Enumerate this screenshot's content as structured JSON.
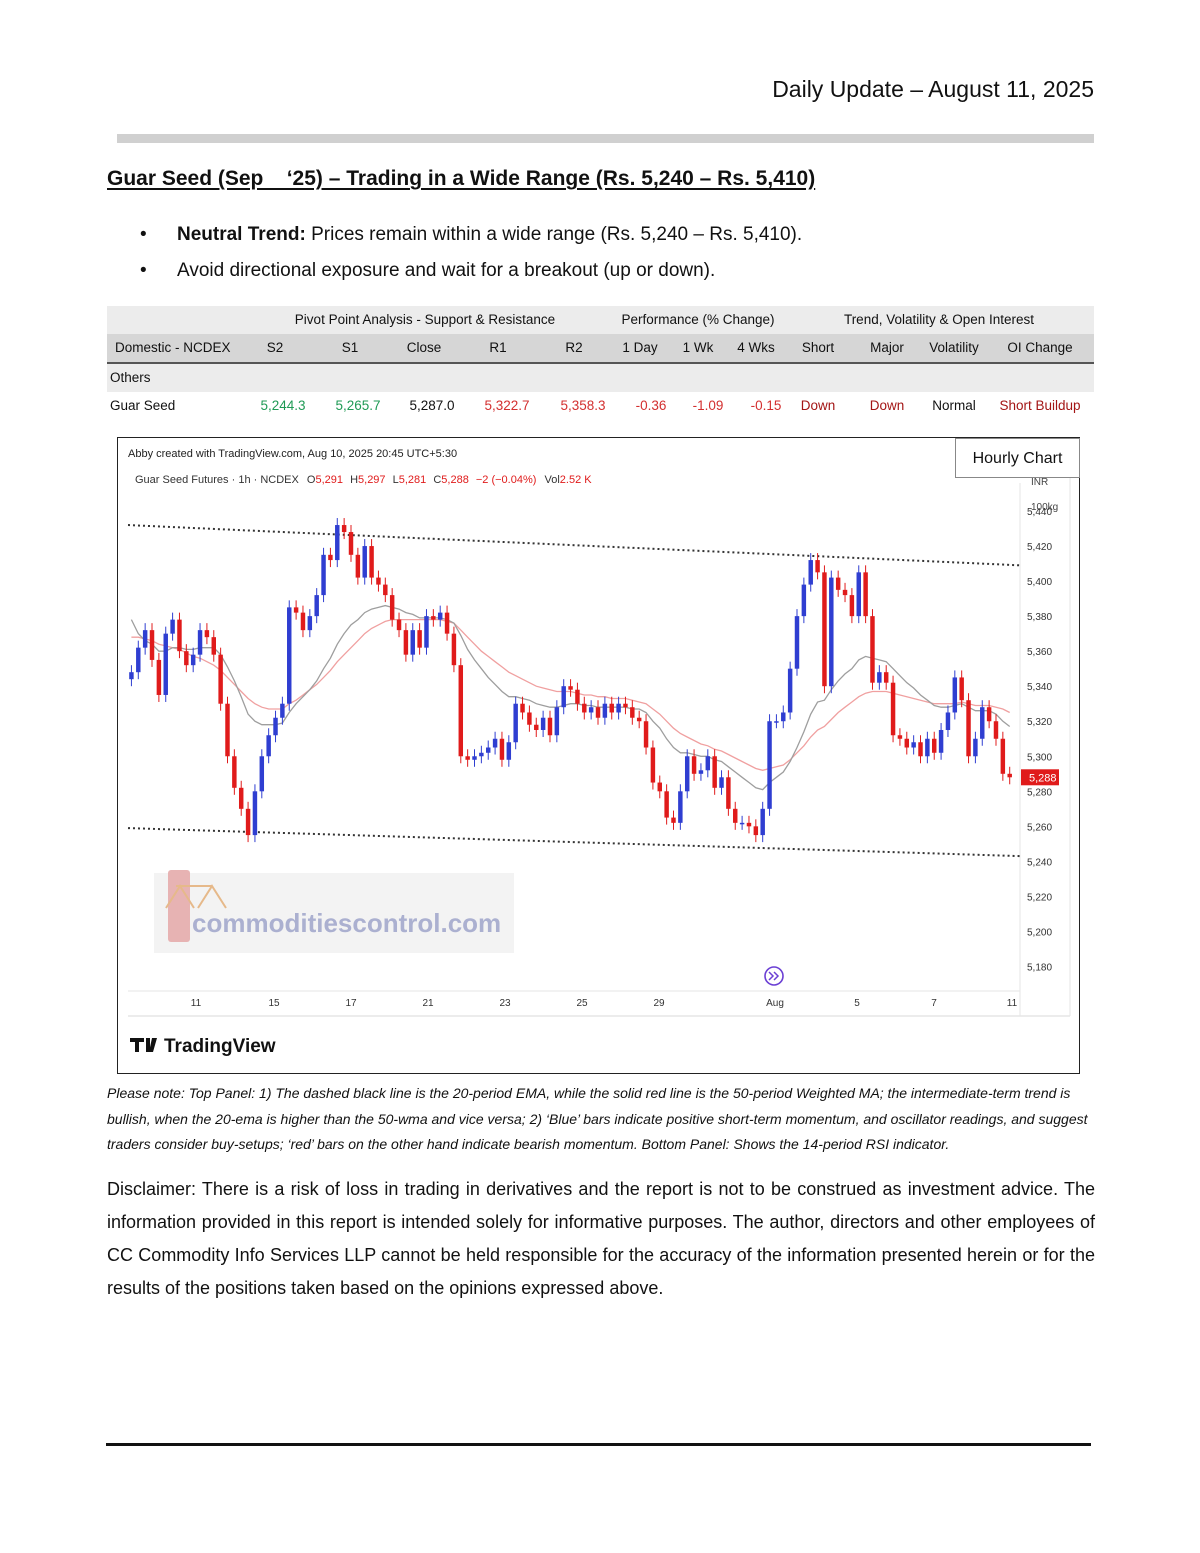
{
  "header": {
    "date_line": "Daily Update – August 11, 2025"
  },
  "title": "Guar Seed (Sep    ‘25) – Trading in a Wide Range (Rs. 5,240 – Rs. 5,410)",
  "bullets": [
    {
      "bold": "Neutral Trend:",
      "text": " Prices remain within a wide range (Rs. 5,240 – Rs. 5,410)."
    },
    {
      "bold": "",
      "text": "Avoid directional exposure and wait for a breakout (up or down)."
    }
  ],
  "table": {
    "groups": [
      "Pivot Point Analysis - Support & Resistance",
      "Performance (% Change)",
      "Trend, Volatility & Open Interest"
    ],
    "columns": [
      "Domestic - NCDEX",
      "S2",
      "S1",
      "Close",
      "R1",
      "R2",
      "1 Day",
      "1 Wk",
      "4 Wks",
      "Short",
      "Major",
      "Volatility",
      "OI Change"
    ],
    "section": "Others",
    "row": [
      "Guar Seed",
      "5,244.3",
      "5,265.7",
      "5,287.0",
      "5,322.7",
      "5,358.3",
      "-0.36",
      "-1.09",
      "-0.15",
      "Down",
      "Down",
      "Normal",
      "Short Buildup"
    ],
    "colors": {
      "support": "#1f9a55",
      "resistance": "#d32f2f",
      "trend": "#a31515"
    }
  },
  "chart": {
    "box_label": "Hourly Chart",
    "created_by": "Abby created with TradingView.com, Aug 10, 2025 20:45 UTC+5:30",
    "legend_prefix": "Guar Seed Futures · 1h · NCDEX",
    "ohlc": {
      "o_label": "O",
      "o": "5,291",
      "h_label": "H",
      "h": "5,297",
      "l_label": "L",
      "l": "5,281",
      "c_label": "C",
      "c": "5,288",
      "chg": "−2 (−0.04%)",
      "vol_label": "Vol",
      "vol": "2.52 K"
    },
    "unit_top": "INR",
    "unit_bottom": "100kg",
    "last_price": "5,288",
    "watermark": "commoditiescontrol.com",
    "logo_text": "TradingView",
    "colors": {
      "up": "#2f3ed1",
      "down": "#e01b1b",
      "ema": "#9e9e9e",
      "wma": "#f0a0a0"
    },
    "chart_data": {
      "type": "candlestick",
      "y_ticks": [
        5440,
        5420,
        5400,
        5380,
        5360,
        5340,
        5320,
        5300,
        5280,
        5260,
        5240,
        5220,
        5200,
        5180
      ],
      "y_tick_labels": [
        "5,440",
        "5,420",
        "5,400",
        "5,380",
        "5,360",
        "5,340",
        "5,320",
        "5,300",
        "5,280",
        "5,260",
        "5,240",
        "5,220",
        "5,200",
        "5,180"
      ],
      "x_tick_labels": [
        "11",
        "15",
        "17",
        "21",
        "23",
        "25",
        "29",
        "Aug",
        "5",
        "7",
        "11"
      ],
      "ylim": [
        5166,
        5456
      ],
      "trendlines": [
        {
          "from": [
            0,
            5432
          ],
          "to": [
            1,
            5409
          ]
        },
        {
          "from": [
            0,
            5259
          ],
          "to": [
            1,
            5243
          ]
        }
      ],
      "close": [
        5348,
        5362,
        5372,
        5355,
        5335,
        5370,
        5378,
        5360,
        5352,
        5358,
        5372,
        5368,
        5358,
        5330,
        5300,
        5282,
        5270,
        5255,
        5280,
        5300,
        5312,
        5322,
        5330,
        5385,
        5382,
        5372,
        5380,
        5392,
        5415,
        5412,
        5432,
        5428,
        5415,
        5402,
        5420,
        5402,
        5398,
        5392,
        5378,
        5372,
        5358,
        5372,
        5362,
        5380,
        5378,
        5382,
        5370,
        5352,
        5300,
        5298,
        5300,
        5302,
        5305,
        5310,
        5298,
        5308,
        5330,
        5325,
        5318,
        5315,
        5322,
        5312,
        5328,
        5340,
        5338,
        5330,
        5325,
        5328,
        5322,
        5330,
        5325,
        5330,
        5328,
        5322,
        5320,
        5305,
        5285,
        5280,
        5265,
        5262,
        5280,
        5300,
        5290,
        5292,
        5300,
        5282,
        5288,
        5270,
        5262,
        5262,
        5260,
        5255,
        5270,
        5320,
        5320,
        5325,
        5350,
        5380,
        5398,
        5412,
        5405,
        5340,
        5402,
        5395,
        5392,
        5380,
        5405,
        5380,
        5342,
        5348,
        5342,
        5312,
        5310,
        5305,
        5308,
        5300,
        5310,
        5302,
        5315,
        5325,
        5345,
        5332,
        5300,
        5310,
        5328,
        5320,
        5310,
        5290,
        5288
      ],
      "ema_20": [
        5378,
        5370,
        5366,
        5364,
        5360,
        5360,
        5362,
        5362,
        5361,
        5361,
        5362,
        5362,
        5362,
        5358,
        5351,
        5343,
        5334,
        5324,
        5320,
        5318,
        5318,
        5318,
        5319,
        5325,
        5330,
        5334,
        5338,
        5343,
        5350,
        5356,
        5364,
        5370,
        5375,
        5378,
        5382,
        5384,
        5385,
        5386,
        5385,
        5384,
        5382,
        5381,
        5379,
        5379,
        5379,
        5379,
        5378,
        5376,
        5369,
        5361,
        5355,
        5350,
        5345,
        5341,
        5337,
        5334,
        5334,
        5333,
        5332,
        5330,
        5329,
        5328,
        5328,
        5329,
        5330,
        5330,
        5329,
        5329,
        5328,
        5328,
        5328,
        5328,
        5328,
        5327,
        5327,
        5325,
        5320,
        5316,
        5310,
        5305,
        5302,
        5302,
        5301,
        5300,
        5300,
        5298,
        5297,
        5294,
        5291,
        5288,
        5285,
        5282,
        5281,
        5285,
        5288,
        5291,
        5297,
        5305,
        5314,
        5324,
        5331,
        5332,
        5338,
        5343,
        5347,
        5350,
        5355,
        5357,
        5356,
        5355,
        5354,
        5350,
        5346,
        5342,
        5339,
        5335,
        5332,
        5329,
        5328,
        5328,
        5329,
        5330,
        5328,
        5326,
        5326,
        5326,
        5324,
        5320,
        5317
      ],
      "wma_50": [
        5368,
        5368,
        5367,
        5366,
        5364,
        5363,
        5362,
        5361,
        5359,
        5357,
        5356,
        5354,
        5352,
        5349,
        5345,
        5341,
        5337,
        5333,
        5330,
        5328,
        5327,
        5327,
        5327,
        5330,
        5332,
        5335,
        5338,
        5341,
        5345,
        5349,
        5354,
        5358,
        5362,
        5366,
        5370,
        5373,
        5375,
        5377,
        5378,
        5378,
        5378,
        5378,
        5378,
        5378,
        5378,
        5378,
        5377,
        5376,
        5372,
        5368,
        5364,
        5360,
        5357,
        5354,
        5351,
        5348,
        5346,
        5344,
        5342,
        5340,
        5339,
        5338,
        5337,
        5337,
        5337,
        5336,
        5335,
        5335,
        5334,
        5334,
        5333,
        5333,
        5333,
        5332,
        5331,
        5330,
        5327,
        5324,
        5320,
        5316,
        5313,
        5311,
        5309,
        5307,
        5306,
        5304,
        5303,
        5301,
        5299,
        5297,
        5295,
        5293,
        5292,
        5293,
        5294,
        5295,
        5298,
        5302,
        5306,
        5311,
        5315,
        5317,
        5321,
        5325,
        5328,
        5331,
        5334,
        5336,
        5337,
        5337,
        5337,
        5336,
        5335,
        5334,
        5333,
        5332,
        5331,
        5330,
        5330,
        5330,
        5330,
        5331,
        5330,
        5329,
        5329,
        5329,
        5328,
        5327,
        5325
      ]
    }
  },
  "note": "Please note: Top Panel: 1) The dashed black line is the 20-period EMA, while the solid red line is the 50-period Weighted MA; the intermediate-term trend is bullish, when the 20-ema is higher than the 50-wma and vice versa; 2)  ‘Blue’  bars indicate positive short-term momentum, and oscillator readings, and suggest traders consider buy-setups;  ‘red’  bars on the other hand indicate bearish momentum. Bottom Panel: Shows the 14-period RSI indicator.",
  "disclaimer": "Disclaimer: There is a risk of loss in trading in derivatives and the report is not to be construed as investment advice. The information provided in this report is intended solely for informative purposes. The author, directors and other employees of CC Commodity Info Services LLP cannot be held responsible for the accuracy of the information presented herein or for the results of the positions taken based on the opinions expressed above."
}
